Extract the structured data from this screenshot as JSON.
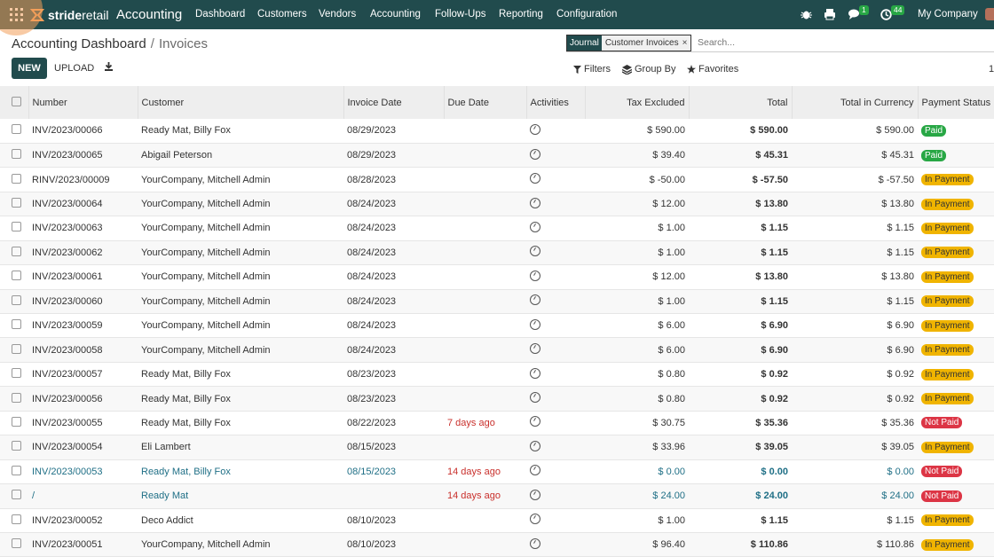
{
  "topbar": {
    "brand_strong": "stride",
    "brand_light": "retail",
    "module": "Accounting",
    "menu": [
      "Dashboard",
      "Customers",
      "Vendors",
      "Accounting",
      "Follow-Ups",
      "Reporting",
      "Configuration"
    ],
    "chat_badge": "1",
    "activity_badge": "44",
    "company": "My Company",
    "color": "#214b4d"
  },
  "breadcrumb": {
    "parent": "Accounting Dashboard",
    "current": "Invoices"
  },
  "actions": {
    "new": "NEW",
    "upload": "UPLOAD"
  },
  "search": {
    "facet_key": "Journal",
    "facet_value": "Customer Invoices",
    "placeholder": "Search..."
  },
  "filters": {
    "filters": "Filters",
    "group_by": "Group By",
    "favorites": "Favorites",
    "pager": "1"
  },
  "table": {
    "columns": [
      "Number",
      "Customer",
      "Invoice Date",
      "Due Date",
      "Activities",
      "Tax Excluded",
      "Total",
      "Total in Currency",
      "Payment Status"
    ],
    "rows": [
      {
        "number": "INV/2023/00066",
        "customer": "Ready Mat, Billy Fox",
        "date": "08/29/2023",
        "due": "",
        "tax_excl": "$ 590.00",
        "total": "$ 590.00",
        "currency_total": "$ 590.00",
        "status": "Paid"
      },
      {
        "number": "INV/2023/00065",
        "customer": "Abigail Peterson",
        "date": "08/29/2023",
        "due": "",
        "tax_excl": "$ 39.40",
        "total": "$ 45.31",
        "currency_total": "$ 45.31",
        "status": "Paid"
      },
      {
        "number": "RINV/2023/00009",
        "customer": "YourCompany, Mitchell Admin",
        "date": "08/28/2023",
        "due": "",
        "tax_excl": "$ -50.00",
        "total": "$ -57.50",
        "currency_total": "$ -57.50",
        "status": "In Payment"
      },
      {
        "number": "INV/2023/00064",
        "customer": "YourCompany, Mitchell Admin",
        "date": "08/24/2023",
        "due": "",
        "tax_excl": "$ 12.00",
        "total": "$ 13.80",
        "currency_total": "$ 13.80",
        "status": "In Payment"
      },
      {
        "number": "INV/2023/00063",
        "customer": "YourCompany, Mitchell Admin",
        "date": "08/24/2023",
        "due": "",
        "tax_excl": "$ 1.00",
        "total": "$ 1.15",
        "currency_total": "$ 1.15",
        "status": "In Payment"
      },
      {
        "number": "INV/2023/00062",
        "customer": "YourCompany, Mitchell Admin",
        "date": "08/24/2023",
        "due": "",
        "tax_excl": "$ 1.00",
        "total": "$ 1.15",
        "currency_total": "$ 1.15",
        "status": "In Payment"
      },
      {
        "number": "INV/2023/00061",
        "customer": "YourCompany, Mitchell Admin",
        "date": "08/24/2023",
        "due": "",
        "tax_excl": "$ 12.00",
        "total": "$ 13.80",
        "currency_total": "$ 13.80",
        "status": "In Payment"
      },
      {
        "number": "INV/2023/00060",
        "customer": "YourCompany, Mitchell Admin",
        "date": "08/24/2023",
        "due": "",
        "tax_excl": "$ 1.00",
        "total": "$ 1.15",
        "currency_total": "$ 1.15",
        "status": "In Payment"
      },
      {
        "number": "INV/2023/00059",
        "customer": "YourCompany, Mitchell Admin",
        "date": "08/24/2023",
        "due": "",
        "tax_excl": "$ 6.00",
        "total": "$ 6.90",
        "currency_total": "$ 6.90",
        "status": "In Payment"
      },
      {
        "number": "INV/2023/00058",
        "customer": "YourCompany, Mitchell Admin",
        "date": "08/24/2023",
        "due": "",
        "tax_excl": "$ 6.00",
        "total": "$ 6.90",
        "currency_total": "$ 6.90",
        "status": "In Payment"
      },
      {
        "number": "INV/2023/00057",
        "customer": "Ready Mat, Billy Fox",
        "date": "08/23/2023",
        "due": "",
        "tax_excl": "$ 0.80",
        "total": "$ 0.92",
        "currency_total": "$ 0.92",
        "status": "In Payment"
      },
      {
        "number": "INV/2023/00056",
        "customer": "Ready Mat, Billy Fox",
        "date": "08/23/2023",
        "due": "",
        "tax_excl": "$ 0.80",
        "total": "$ 0.92",
        "currency_total": "$ 0.92",
        "status": "In Payment"
      },
      {
        "number": "INV/2023/00055",
        "customer": "Ready Mat, Billy Fox",
        "date": "08/22/2023",
        "due": "7 days ago",
        "tax_excl": "$ 30.75",
        "total": "$ 35.36",
        "currency_total": "$ 35.36",
        "status": "Not Paid"
      },
      {
        "number": "INV/2023/00054",
        "customer": "Eli Lambert",
        "date": "08/15/2023",
        "due": "",
        "tax_excl": "$ 33.96",
        "total": "$ 39.05",
        "currency_total": "$ 39.05",
        "status": "In Payment"
      },
      {
        "number": "INV/2023/00053",
        "customer": "Ready Mat, Billy Fox",
        "date": "08/15/2023",
        "due": "14 days ago",
        "tax_excl": "$ 0.00",
        "total": "$ 0.00",
        "currency_total": "$ 0.00",
        "status": "Not Paid",
        "draft": true
      },
      {
        "number": "/",
        "customer": "Ready Mat",
        "date": "",
        "due": "14 days ago",
        "tax_excl": "$ 24.00",
        "total": "$ 24.00",
        "currency_total": "$ 24.00",
        "status": "Not Paid",
        "draft": true
      },
      {
        "number": "INV/2023/00052",
        "customer": "Deco Addict",
        "date": "08/10/2023",
        "due": "",
        "tax_excl": "$ 1.00",
        "total": "$ 1.15",
        "currency_total": "$ 1.15",
        "status": "In Payment"
      },
      {
        "number": "INV/2023/00051",
        "customer": "YourCompany, Mitchell Admin",
        "date": "08/10/2023",
        "due": "",
        "tax_excl": "$ 96.40",
        "total": "$ 110.86",
        "currency_total": "$ 110.86",
        "status": "In Payment"
      }
    ]
  }
}
